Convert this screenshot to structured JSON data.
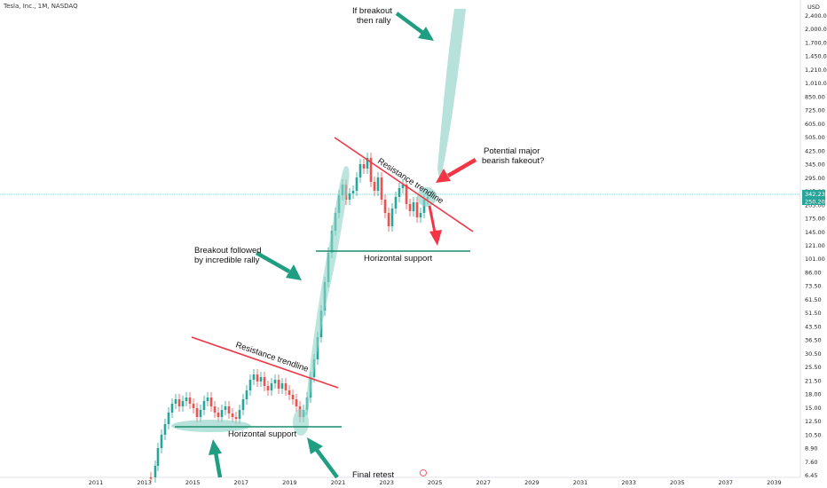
{
  "header": {
    "symbol": "Tesla, Inc., 1M, NASDAQ"
  },
  "colors": {
    "up": "#26a69a",
    "down": "#ef5350",
    "arrow_green": "#1f9e82",
    "arrow_red": "#f23645",
    "highlight": "#8fd3c7",
    "support_line": "#1a8c6d",
    "resistance_line": "#f23645"
  },
  "chart_data": {
    "type": "candlestick",
    "scale": "log",
    "currency": "USD",
    "last_price": "342.23",
    "secondary_price": "250.20",
    "y_ticks": [
      "2,400.00",
      "2,000.00",
      "1,700.00",
      "1,450.00",
      "1,210.00",
      "1,010.00",
      "850.00",
      "725.00",
      "605.00",
      "505.00",
      "425.00",
      "345.00",
      "295.00",
      "245.00",
      "205.00",
      "175.00",
      "145.00",
      "121.00",
      "101.00",
      "86.00",
      "73.50",
      "61.50",
      "51.50",
      "43.50",
      "36.50",
      "30.50",
      "25.50",
      "21.50",
      "18.00",
      "15.00",
      "12.50",
      "10.50",
      "8.90",
      "7.60",
      "6.45"
    ],
    "x_ticks": [
      "2011",
      "2013",
      "2015",
      "2017",
      "2019",
      "2021",
      "2023",
      "2025",
      "2027",
      "2029",
      "2031",
      "2033",
      "2035",
      "2037",
      "2039"
    ],
    "annotations": {
      "if_breakout_1": "If breakout",
      "if_breakout_2": "then rally",
      "potential_1": "Potential major",
      "potential_2": "bearish fakeout?",
      "resistance_upper": "Resistance trendline",
      "horizontal_upper": "Horizontal support",
      "breakout_1": "Breakout followed",
      "breakout_2": "by incredible rally",
      "resistance_lower": "Resistance trendline",
      "horizontal_lower": "Horizontal support",
      "final_retest": "Final retest"
    }
  }
}
